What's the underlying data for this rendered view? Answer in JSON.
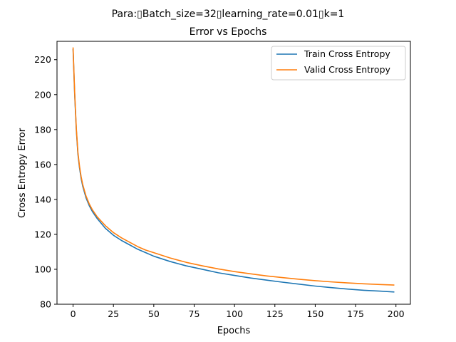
{
  "chart_data": {
    "type": "line",
    "suptitle": "Para:▯Batch_size=32▯learning_rate=0.01▯k=1",
    "title": "Error vs Epochs",
    "xlabel": "Epochs",
    "ylabel": "Cross Entropy Error",
    "xlim": [
      -9.95,
      208.95
    ],
    "ylim": [
      80,
      230.5
    ],
    "xticks": [
      0,
      25,
      50,
      75,
      100,
      125,
      150,
      175,
      200
    ],
    "yticks": [
      80,
      100,
      120,
      140,
      160,
      180,
      200,
      220
    ],
    "grid": false,
    "legend_position": "top-right",
    "series": [
      {
        "name": "Train Cross Entropy",
        "color": "#1f77b4",
        "points": [
          [
            0,
            226
          ],
          [
            1,
            200
          ],
          [
            2,
            180
          ],
          [
            3,
            166
          ],
          [
            4,
            158
          ],
          [
            5,
            152
          ],
          [
            6,
            147.5
          ],
          [
            8,
            141
          ],
          [
            10,
            136.5
          ],
          [
            12,
            133
          ],
          [
            15,
            129
          ],
          [
            20,
            123.5
          ],
          [
            25,
            119.5
          ],
          [
            30,
            116.5
          ],
          [
            35,
            114
          ],
          [
            40,
            111.5
          ],
          [
            45,
            109.5
          ],
          [
            50,
            107.5
          ],
          [
            60,
            104.5
          ],
          [
            70,
            102
          ],
          [
            80,
            100
          ],
          [
            90,
            98
          ],
          [
            100,
            96.5
          ],
          [
            110,
            95
          ],
          [
            120,
            93.8
          ],
          [
            130,
            92.6
          ],
          [
            140,
            91.5
          ],
          [
            150,
            90.4
          ],
          [
            160,
            89.5
          ],
          [
            170,
            88.7
          ],
          [
            180,
            88
          ],
          [
            190,
            87.5
          ],
          [
            199,
            87
          ]
        ]
      },
      {
        "name": "Valid Cross Entropy",
        "color": "#ff7f0e",
        "points": [
          [
            0,
            227
          ],
          [
            1,
            201
          ],
          [
            2,
            181
          ],
          [
            3,
            167
          ],
          [
            4,
            159
          ],
          [
            5,
            153
          ],
          [
            6,
            148.5
          ],
          [
            8,
            142
          ],
          [
            10,
            137.5
          ],
          [
            12,
            134
          ],
          [
            15,
            130
          ],
          [
            20,
            125
          ],
          [
            25,
            121
          ],
          [
            30,
            118
          ],
          [
            35,
            115.5
          ],
          [
            40,
            113
          ],
          [
            45,
            111
          ],
          [
            50,
            109.5
          ],
          [
            60,
            106.5
          ],
          [
            70,
            104
          ],
          [
            80,
            102
          ],
          [
            90,
            100.2
          ],
          [
            100,
            98.7
          ],
          [
            110,
            97.4
          ],
          [
            120,
            96.2
          ],
          [
            130,
            95.2
          ],
          [
            140,
            94.3
          ],
          [
            150,
            93.5
          ],
          [
            160,
            92.8
          ],
          [
            170,
            92.2
          ],
          [
            180,
            91.7
          ],
          [
            190,
            91.3
          ],
          [
            199,
            91
          ]
        ]
      }
    ]
  }
}
